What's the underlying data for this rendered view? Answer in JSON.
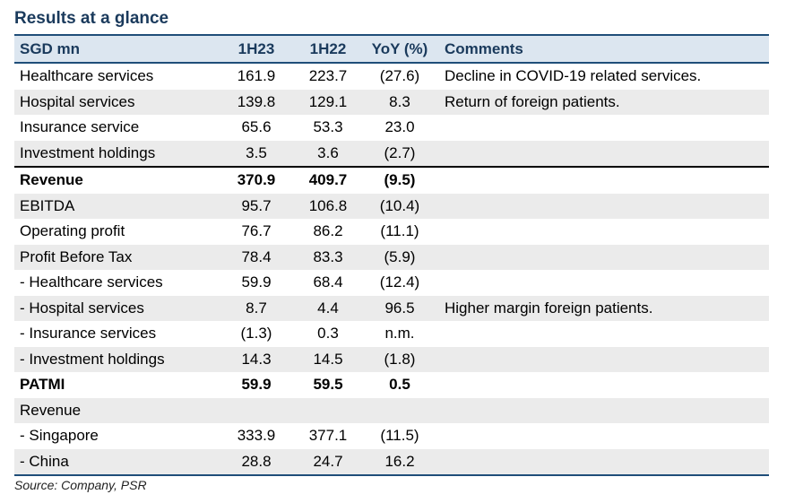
{
  "title": "Results at a glance",
  "header": {
    "c0": "SGD mn",
    "c1": "1H23",
    "c2": "1H22",
    "c3": "YoY (%)",
    "c4": "Comments"
  },
  "rows": [
    {
      "c0": "Healthcare services",
      "c1": "161.9",
      "c2": "223.7",
      "c3": "(27.6)",
      "c4": "Decline in COVID-19 related services."
    },
    {
      "c0": "Hospital services",
      "c1": "139.8",
      "c2": "129.1",
      "c3": "8.3",
      "c4": "Return of foreign patients."
    },
    {
      "c0": "Insurance service",
      "c1": "65.6",
      "c2": "53.3",
      "c3": "23.0",
      "c4": ""
    },
    {
      "c0": "Investment holdings",
      "c1": "3.5",
      "c2": "3.6",
      "c3": "(2.7)",
      "c4": ""
    },
    {
      "c0": "Revenue",
      "c1": "370.9",
      "c2": "409.7",
      "c3": "(9.5)",
      "c4": ""
    },
    {
      "c0": "EBITDA",
      "c1": "95.7",
      "c2": "106.8",
      "c3": "(10.4)",
      "c4": ""
    },
    {
      "c0": "Operating profit",
      "c1": "76.7",
      "c2": "86.2",
      "c3": "(11.1)",
      "c4": ""
    },
    {
      "c0": "Profit Before Tax",
      "c1": "78.4",
      "c2": "83.3",
      "c3": "(5.9)",
      "c4": ""
    },
    {
      "c0": " - Healthcare services",
      "c1": "59.9",
      "c2": "68.4",
      "c3": "(12.4)",
      "c4": ""
    },
    {
      "c0": " - Hospital services",
      "c1": "8.7",
      "c2": "4.4",
      "c3": "96.5",
      "c4": "Higher margin foreign patients."
    },
    {
      "c0": " - Insurance services",
      "c1": "(1.3)",
      "c2": "0.3",
      "c3": "n.m.",
      "c4": ""
    },
    {
      "c0": " - Investment holdings",
      "c1": "14.3",
      "c2": "14.5",
      "c3": "(1.8)",
      "c4": ""
    },
    {
      "c0": "PATMI",
      "c1": "59.9",
      "c2": "59.5",
      "c3": "0.5",
      "c4": ""
    },
    {
      "c0": "Revenue",
      "c1": "",
      "c2": "",
      "c3": "",
      "c4": ""
    },
    {
      "c0": " - Singapore",
      "c1": "333.9",
      "c2": "377.1",
      "c3": "(11.5)",
      "c4": ""
    },
    {
      "c0": " - China",
      "c1": "28.8",
      "c2": "24.7",
      "c3": "16.2",
      "c4": ""
    }
  ],
  "source": "Source: Company, PSR"
}
